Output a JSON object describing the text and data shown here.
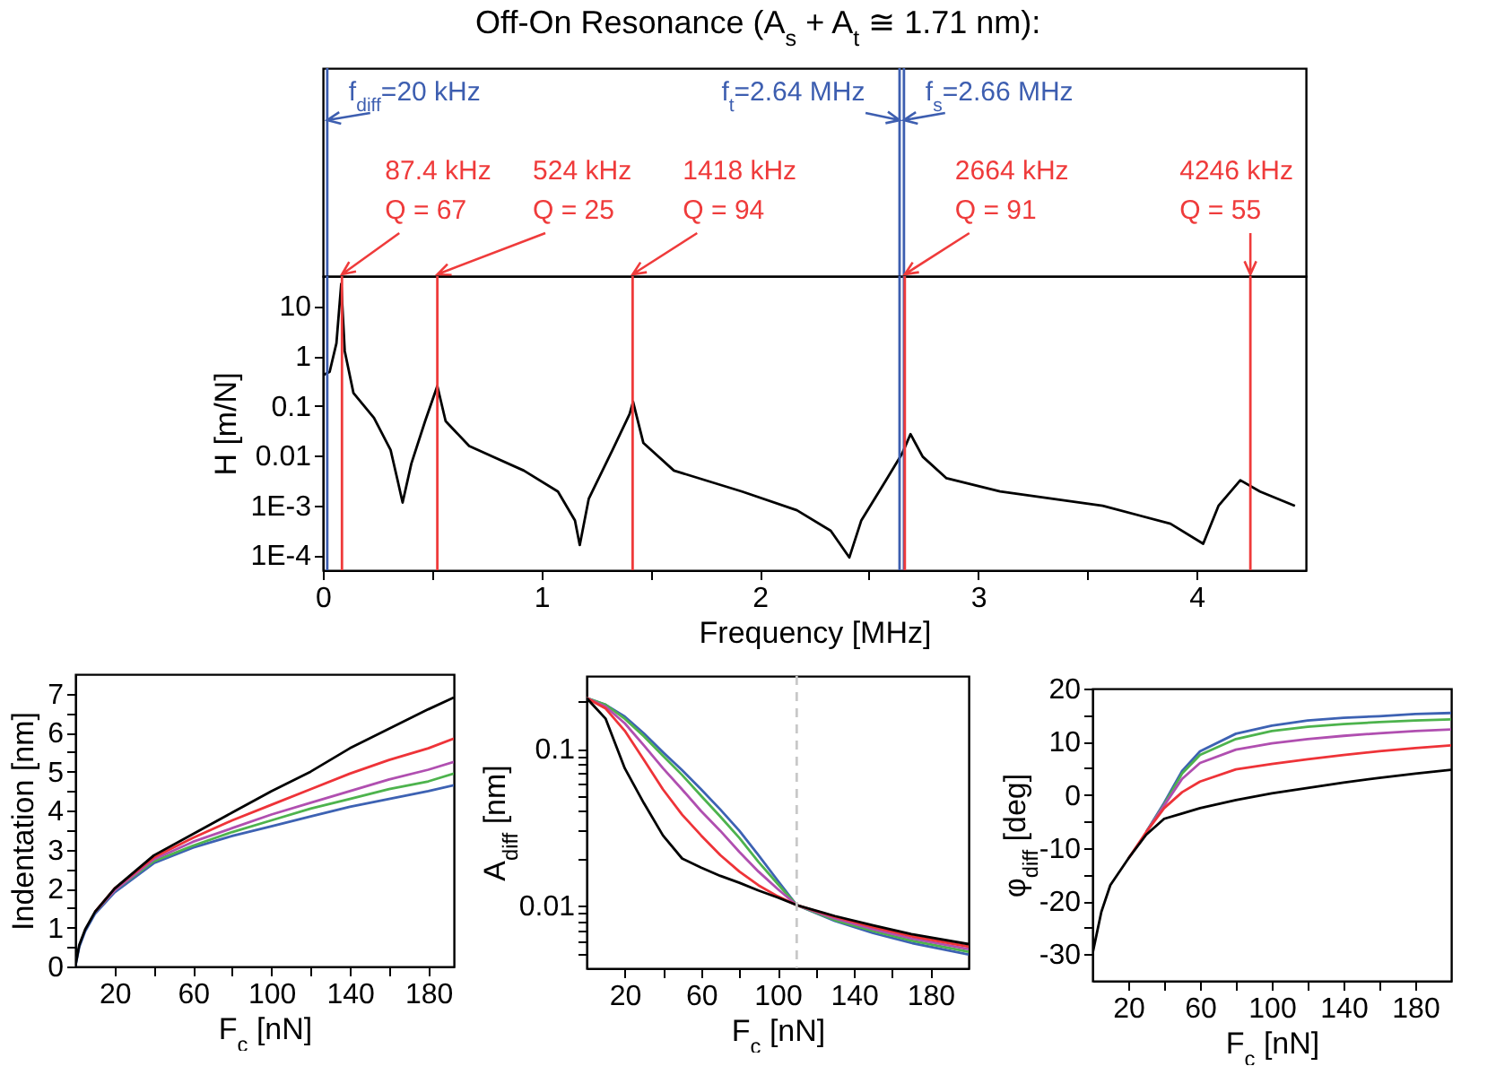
{
  "chart_data": [
    {
      "type": "line",
      "title": "Off-On Resonance (A$_{s}$ + A$_{t}$ ≅ 1.71 nm):",
      "xlabel": "Frequency [MHz]",
      "ylabel": "H [m/N]",
      "x": [
        0,
        0.031,
        0.062,
        0.084,
        0.1,
        0.14,
        0.234,
        0.31,
        0.34,
        0.365,
        0.405,
        0.468,
        0.524,
        0.562,
        0.67,
        0.92,
        1.076,
        1.154,
        1.176,
        1.217,
        1.326,
        1.404,
        1.42,
        1.467,
        1.607,
        1.919,
        2.17,
        2.325,
        2.41,
        2.465,
        2.574,
        2.652,
        2.69,
        2.746,
        2.855,
        3.1,
        3.57,
        3.88,
        4.03,
        4.1,
        4.2,
        4.29,
        4.45
      ],
      "series": [
        {
          "color": "#000000",
          "values": [
            0.41,
            0.48,
            1.8,
            28,
            1.26,
            0.18,
            0.057,
            0.013,
            0.0035,
            0.00114,
            0.0069,
            0.049,
            0.25,
            0.049,
            0.0155,
            0.005,
            0.0019,
            0.0005,
            0.00016,
            0.00135,
            0.013,
            0.068,
            0.12,
            0.018,
            0.005,
            0.0019,
            0.0008,
            0.00031,
            9e-05,
            0.0005,
            0.003,
            0.011,
            0.027,
            0.0095,
            0.0035,
            0.0019,
            0.00098,
            0.00043,
            0.00017,
            0.00098,
            0.0032,
            0.0019,
            0.00098
          ]
        }
      ],
      "xlim": [
        0,
        4.5
      ],
      "xticks": [
        0,
        {
          "value": 0.5,
          "label": null
        },
        1,
        {
          "value": 1.5,
          "label": null
        },
        2,
        {
          "value": 2.5,
          "label": null
        },
        3,
        {
          "value": 3.5,
          "label": null
        },
        4
      ],
      "ylim": [
        5e-05,
        40
      ],
      "yticks": [
        {
          "value": 0.0001,
          "label": "1E-4"
        },
        {
          "value": 0.001,
          "label": "1E-3"
        },
        0.01,
        0.1,
        1,
        10
      ],
      "log": true,
      "ref_lines": [
        {
          "axis": "x",
          "value": 0.02,
          "label": "f$_{diff}$=20 kHz",
          "color": "#3d5eb0"
        },
        {
          "axis": "x",
          "value": 0.0874,
          "label": "87.4 kHz\nQ = 67",
          "color": "#ef3b3b"
        },
        {
          "axis": "x",
          "value": 0.524,
          "label": "524 kHz\nQ = 25",
          "color": "#ef3b3b"
        },
        {
          "axis": "x",
          "value": 1.418,
          "label": "1418 kHz\nQ = 94",
          "color": "#ef3b3b"
        },
        {
          "axis": "x",
          "value": 2.64,
          "label": "f$_{t}$=2.64 MHz",
          "color": "#3d5eb0"
        },
        {
          "axis": "x",
          "value": 2.66,
          "label": "f$_{s}$=2.66 MHz",
          "color": "#3d5eb0"
        },
        {
          "axis": "x",
          "value": 2.664,
          "label": "2664 kHz\nQ = 91",
          "color": "#ef3b3b"
        },
        {
          "axis": "x",
          "value": 4.246,
          "label": "4246 kHz\nQ = 55",
          "color": "#ef3b3b"
        }
      ]
    },
    {
      "type": "line",
      "xlabel": "F$_{c}$ [nN]",
      "ylabel": "Indentation [nm]",
      "x": [
        0,
        2,
        5,
        10,
        20,
        40,
        60,
        80,
        100,
        120,
        140,
        160,
        180,
        193
      ],
      "series": [
        {
          "color": "#3d62b3",
          "values": [
            0,
            0.5,
            0.9,
            1.35,
            1.9,
            2.65,
            3.05,
            3.35,
            3.6,
            3.85,
            4.1,
            4.3,
            4.5,
            4.65
          ]
        },
        {
          "color": "#4db34d",
          "values": [
            null,
            null,
            null,
            1.4,
            1.95,
            2.7,
            3.1,
            3.45,
            3.75,
            4.05,
            4.3,
            4.55,
            4.75,
            4.95
          ]
        },
        {
          "color": "#b04fb0",
          "values": [
            null,
            null,
            null,
            1.4,
            1.95,
            2.75,
            3.2,
            3.55,
            3.9,
            4.2,
            4.5,
            4.8,
            5.05,
            5.25
          ]
        },
        {
          "color": "#ee3338",
          "values": [
            null,
            null,
            null,
            1.4,
            2.0,
            2.8,
            3.3,
            3.75,
            4.15,
            4.55,
            4.95,
            5.3,
            5.6,
            5.85
          ]
        },
        {
          "color": "#000000",
          "values": [
            0,
            0.55,
            0.95,
            1.4,
            2.0,
            2.85,
            3.4,
            3.95,
            4.5,
            5.0,
            5.6,
            6.1,
            6.6,
            6.9
          ]
        }
      ],
      "xlim": [
        0,
        193
      ],
      "xticks": [
        20,
        {
          "value": 40,
          "label": null
        },
        60,
        {
          "value": 80,
          "label": null
        },
        100,
        {
          "value": 120,
          "label": null
        },
        140,
        {
          "value": 160,
          "label": null
        },
        180
      ],
      "ylim": [
        0,
        7.5
      ],
      "yticks": [
        0,
        {
          "value": 0.5,
          "label": null
        },
        1,
        {
          "value": 1.5,
          "label": null
        },
        2,
        {
          "value": 2.5,
          "label": null
        },
        3,
        {
          "value": 3.5,
          "label": null
        },
        4,
        {
          "value": 4.5,
          "label": null
        },
        5,
        {
          "value": 5.5,
          "label": null
        },
        6,
        {
          "value": 6.5,
          "label": null
        },
        7
      ]
    },
    {
      "type": "line",
      "xlabel": "F$_{c}$ [nN]",
      "ylabel": "A$_{diff}$ [nm]",
      "x": [
        0,
        10,
        20,
        30,
        40,
        50,
        60,
        70,
        80,
        90,
        100,
        110,
        130,
        150,
        170,
        200
      ],
      "series": [
        {
          "color": "#3d62b3",
          "values": [
            0.21,
            0.19,
            0.16,
            0.125,
            0.095,
            0.073,
            0.055,
            0.041,
            0.03,
            0.021,
            0.0145,
            0.0101,
            0.008,
            0.0067,
            0.0058,
            0.0049
          ]
        },
        {
          "color": "#4db34d",
          "values": [
            0.21,
            0.19,
            0.155,
            0.12,
            0.09,
            0.068,
            0.05,
            0.037,
            0.027,
            0.019,
            0.0138,
            0.0101,
            0.0081,
            0.0069,
            0.006,
            0.0051
          ]
        },
        {
          "color": "#b04fb0",
          "values": [
            0.21,
            0.185,
            0.145,
            0.105,
            0.075,
            0.055,
            0.04,
            0.03,
            0.022,
            0.0165,
            0.0128,
            0.0101,
            0.0083,
            0.0071,
            0.0062,
            0.0053
          ]
        },
        {
          "color": "#ee3338",
          "values": [
            0.21,
            0.18,
            0.13,
            0.085,
            0.055,
            0.038,
            0.028,
            0.021,
            0.0165,
            0.0135,
            0.0115,
            0.0101,
            0.0085,
            0.0073,
            0.0064,
            0.0055
          ]
        },
        {
          "color": "#000000",
          "values": [
            0.21,
            0.155,
            0.075,
            0.045,
            0.028,
            0.02,
            0.0175,
            0.0155,
            0.014,
            0.0125,
            0.0113,
            0.0101,
            0.0086,
            0.0075,
            0.0066,
            0.0057
          ]
        }
      ],
      "xlim": [
        0,
        200
      ],
      "xticks": [
        20,
        {
          "value": 40,
          "label": null
        },
        60,
        {
          "value": 80,
          "label": null
        },
        100,
        {
          "value": 120,
          "label": null
        },
        140,
        {
          "value": 160,
          "label": null
        },
        180
      ],
      "ylim": [
        0.004,
        0.29
      ],
      "yticks": [
        {
          "value": 0.005,
          "label": null
        },
        {
          "value": 0.006,
          "label": null
        },
        {
          "value": 0.007,
          "label": null
        },
        {
          "value": 0.008,
          "label": null
        },
        {
          "value": 0.009,
          "label": null
        },
        0.01,
        {
          "value": 0.02,
          "label": null
        },
        {
          "value": 0.03,
          "label": null
        },
        {
          "value": 0.04,
          "label": null
        },
        {
          "value": 0.05,
          "label": null
        },
        {
          "value": 0.06,
          "label": null
        },
        {
          "value": 0.07,
          "label": null
        },
        {
          "value": 0.08,
          "label": null
        },
        {
          "value": 0.09,
          "label": null
        },
        0.1,
        {
          "value": 0.2,
          "label": null
        }
      ],
      "log": true,
      "ref_lines": [
        {
          "axis": "x",
          "value": 110,
          "color": "#c8c8c8",
          "line_style": "dashed"
        }
      ]
    },
    {
      "type": "line",
      "xlabel": "F$_{c}$ [nN]",
      "ylabel": "φ$_{diff}$ [deg]",
      "x": [
        0,
        5,
        10,
        20,
        30,
        40,
        50,
        60,
        80,
        100,
        120,
        140,
        160,
        180,
        200
      ],
      "series": [
        {
          "color": "#3d62b3",
          "values": [
            null,
            null,
            null,
            null,
            -7,
            -1.5,
            4.5,
            8.2,
            11.5,
            13,
            14,
            14.5,
            14.8,
            15.2,
            15.4
          ]
        },
        {
          "color": "#4db34d",
          "values": [
            null,
            null,
            null,
            null,
            -7,
            -1.8,
            4,
            7.5,
            10.5,
            12,
            12.8,
            13.3,
            13.7,
            14,
            14.2
          ]
        },
        {
          "color": "#b04fb0",
          "values": [
            null,
            null,
            null,
            null,
            -7,
            -2,
            3,
            6,
            8.5,
            9.7,
            10.5,
            11.1,
            11.6,
            12,
            12.3
          ]
        },
        {
          "color": "#ee3338",
          "values": [
            null,
            null,
            null,
            -12,
            -7,
            -2.5,
            0.5,
            2.5,
            4.8,
            5.8,
            6.7,
            7.5,
            8.2,
            8.8,
            9.3
          ]
        },
        {
          "color": "#000000",
          "values": [
            -30,
            -22,
            -17,
            -12,
            -7.5,
            -4.5,
            -3.5,
            -2.5,
            -1,
            0.3,
            1.3,
            2.3,
            3.2,
            4,
            4.7
          ]
        }
      ],
      "xlim": [
        0,
        200
      ],
      "xticks": [
        20,
        {
          "value": 40,
          "label": null
        },
        60,
        {
          "value": 80,
          "label": null
        },
        100,
        {
          "value": 120,
          "label": null
        },
        140,
        {
          "value": 160,
          "label": null
        },
        180
      ],
      "ylim": [
        -35,
        20
      ],
      "yticks": [
        -30,
        {
          "value": -25,
          "label": null
        },
        -20,
        {
          "value": -15,
          "label": null
        },
        -10,
        {
          "value": -5,
          "label": null
        },
        0,
        {
          "value": 5,
          "label": null
        },
        10,
        {
          "value": 15,
          "label": null
        },
        20
      ]
    }
  ]
}
